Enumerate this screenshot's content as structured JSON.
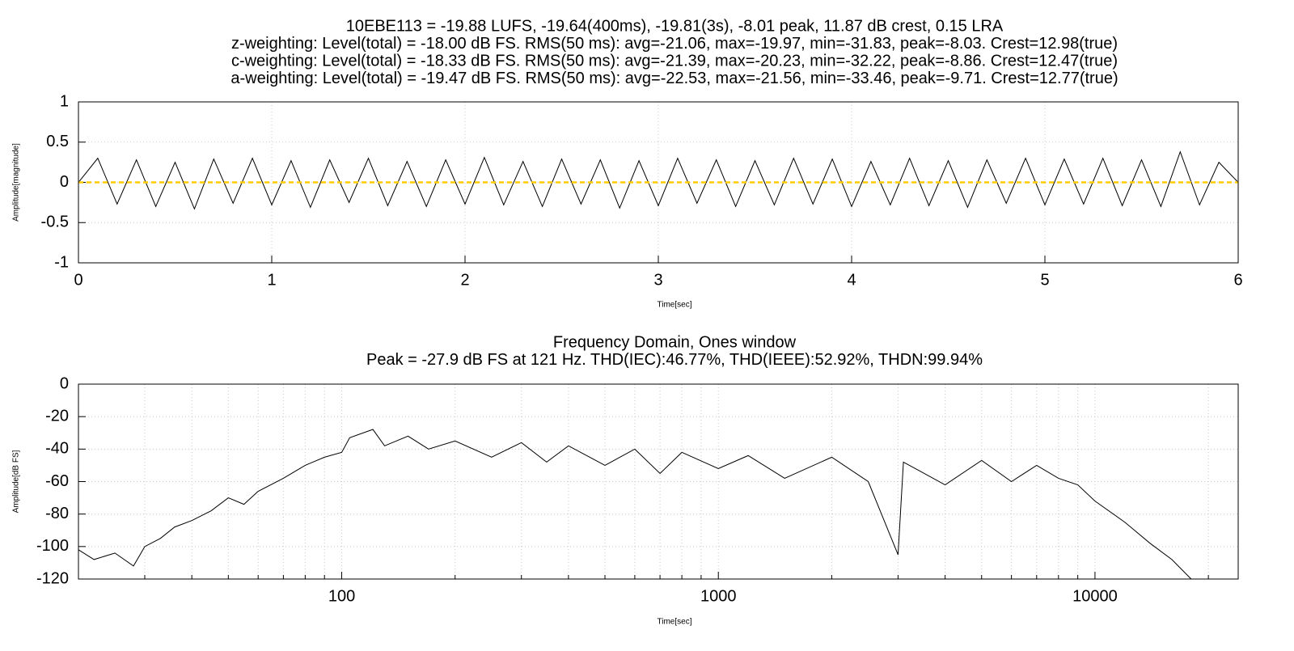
{
  "chart_data": [
    {
      "type": "line",
      "title": [
        "10EBE113 = -19.88 LUFS, -19.64(400ms), -19.81(3s), -8.01 peak, 11.87 dB crest, 0.15 LRA",
        "z-weighting: Level(total) = -18.00 dB FS. RMS(50 ms): avg=-21.06, max=-19.97, min=-31.83, peak=-8.03. Crest=12.98(true)",
        "c-weighting: Level(total) = -18.33 dB FS. RMS(50 ms): avg=-21.39, max=-20.23, min=-32.22, peak=-8.86. Crest=12.47(true)",
        "a-weighting: Level(total) = -19.47 dB FS. RMS(50 ms): avg=-22.53, max=-21.56, min=-33.46, peak=-9.71. Crest=12.77(true)"
      ],
      "xlabel": "Time[sec]",
      "ylabel": "Amplitude[magnitude]",
      "xlim": [
        0,
        6
      ],
      "ylim": [
        -1,
        1
      ],
      "xticks": [
        0,
        1,
        2,
        3,
        4,
        5,
        6
      ],
      "yticks": [
        -1,
        -0.5,
        0,
        0.5,
        1
      ],
      "grid": true,
      "log_x": false,
      "series": [
        {
          "color": "#000000",
          "x": [
            0,
            0.1,
            0.2,
            0.3,
            0.4,
            0.5,
            0.6,
            0.7,
            0.8,
            0.9,
            1,
            1.1,
            1.2,
            1.3,
            1.4,
            1.5,
            1.6,
            1.7,
            1.8,
            1.9,
            2,
            2.1,
            2.2,
            2.3,
            2.4,
            2.5,
            2.6,
            2.7,
            2.8,
            2.9,
            3,
            3.1,
            3.2,
            3.3,
            3.4,
            3.5,
            3.6,
            3.7,
            3.8,
            3.9,
            4,
            4.1,
            4.2,
            4.3,
            4.4,
            4.5,
            4.6,
            4.7,
            4.8,
            4.9,
            5,
            5.1,
            5.2,
            5.3,
            5.4,
            5.5,
            5.6,
            5.7,
            5.8,
            5.9,
            6
          ],
          "values": [
            0,
            0.3,
            -0.27,
            0.28,
            -0.3,
            0.25,
            -0.33,
            0.29,
            -0.26,
            0.3,
            -0.28,
            0.27,
            -0.31,
            0.28,
            -0.25,
            0.3,
            -0.29,
            0.26,
            -0.3,
            0.28,
            -0.27,
            0.31,
            -0.28,
            0.26,
            -0.3,
            0.29,
            -0.27,
            0.28,
            -0.32,
            0.27,
            -0.29,
            0.3,
            -0.26,
            0.28,
            -0.3,
            0.27,
            -0.28,
            0.3,
            -0.27,
            0.29,
            -0.3,
            0.26,
            -0.28,
            0.3,
            -0.29,
            0.27,
            -0.31,
            0.28,
            -0.26,
            0.3,
            -0.28,
            0.29,
            -0.27,
            0.3,
            -0.29,
            0.28,
            -0.3,
            0.38,
            -0.28,
            0.25,
            0
          ]
        },
        {
          "color": "#ffcc00",
          "dash": true,
          "x": [
            0,
            6
          ],
          "values": [
            0,
            0
          ]
        }
      ]
    },
    {
      "type": "line",
      "title": [
        "Frequency Domain, Ones window",
        "Peak = -27.9 dB FS at 121 Hz. THD(IEC):46.77%, THD(IEEE):52.92%, THDN:99.94%"
      ],
      "xlabel": "Time[sec]",
      "ylabel": "Amplitude[dB FS]",
      "xlim": [
        20,
        24000
      ],
      "ylim": [
        -120,
        0
      ],
      "log_x": true,
      "xticks": [
        100,
        1000,
        10000
      ],
      "yticks": [
        -120,
        -100,
        -80,
        -60,
        -40,
        -20,
        0
      ],
      "xminorticks": [
        20,
        30,
        40,
        50,
        60,
        70,
        80,
        90,
        200,
        300,
        400,
        500,
        600,
        700,
        800,
        900,
        2000,
        3000,
        4000,
        5000,
        6000,
        7000,
        8000,
        9000,
        20000
      ],
      "grid": true,
      "series": [
        {
          "color": "#000000",
          "x": [
            20,
            22,
            25,
            28,
            30,
            33,
            36,
            40,
            45,
            50,
            55,
            60,
            70,
            80,
            90,
            100,
            105,
            121,
            130,
            150,
            170,
            200,
            250,
            300,
            350,
            400,
            500,
            600,
            700,
            800,
            1000,
            1200,
            1500,
            2000,
            2500,
            3000,
            3100,
            4000,
            5000,
            6000,
            7000,
            8000,
            9000,
            10000,
            12000,
            14000,
            16000,
            18000
          ],
          "values": [
            -102,
            -108,
            -104,
            -112,
            -100,
            -95,
            -88,
            -84,
            -78,
            -70,
            -74,
            -66,
            -58,
            -50,
            -45,
            -42,
            -33,
            -27.9,
            -38,
            -32,
            -40,
            -35,
            -45,
            -36,
            -48,
            -38,
            -50,
            -40,
            -55,
            -42,
            -52,
            -44,
            -58,
            -45,
            -60,
            -105,
            -48,
            -62,
            -47,
            -60,
            -50,
            -58,
            -62,
            -72,
            -85,
            -98,
            -108,
            -120
          ]
        }
      ]
    }
  ]
}
